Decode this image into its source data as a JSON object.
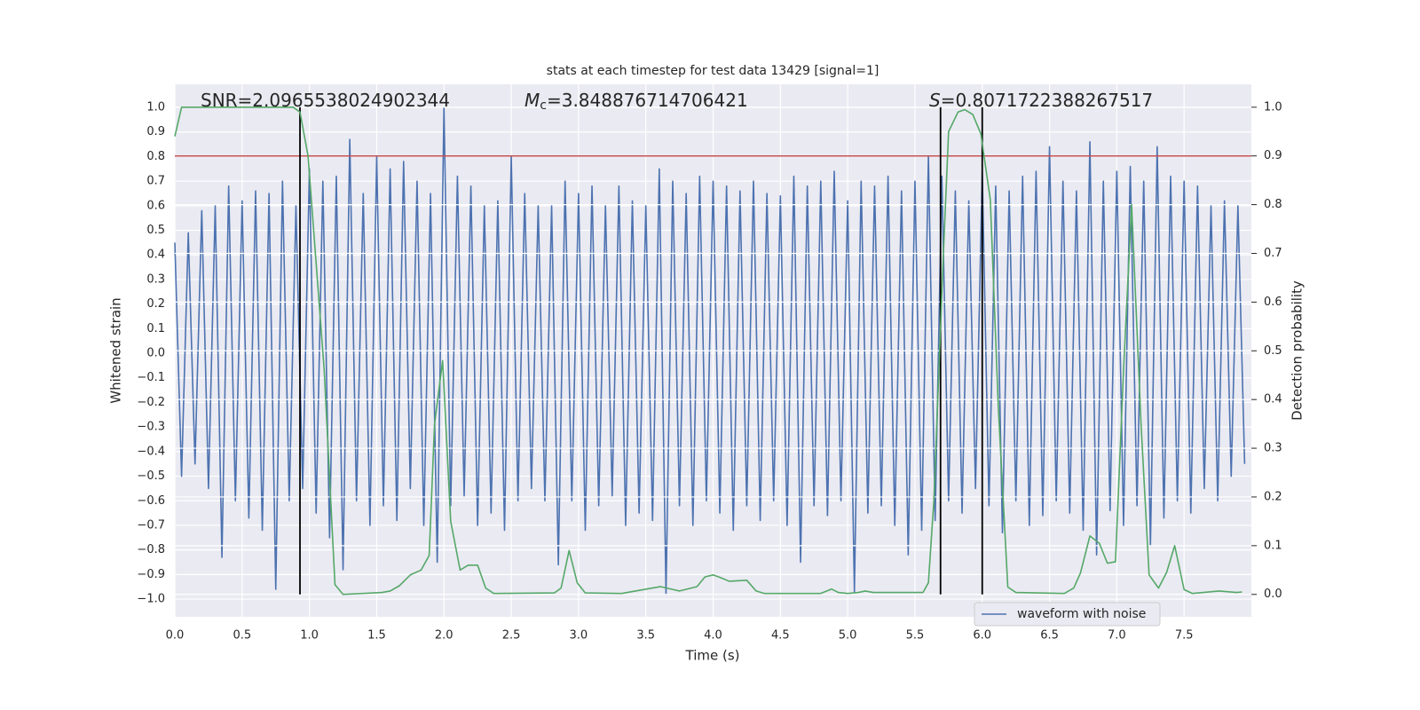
{
  "chart_data": {
    "type": "line",
    "title": "stats at each timestep for test data 13429 [signal=1]",
    "xlabel": "Time (s)",
    "ylabel": "Whitened strain",
    "y2label": "Detection probability",
    "xlim": [
      0,
      8
    ],
    "ylim": [
      -1.072,
      1.094
    ],
    "y2lim": [
      -0.046,
      1.047
    ],
    "xticks": [
      {
        "value": 0,
        "label": "0.0"
      },
      {
        "value": 0.5,
        "label": "0.5"
      },
      {
        "value": 1,
        "label": "1.0"
      },
      {
        "value": 1.5,
        "label": "1.5"
      },
      {
        "value": 2,
        "label": "2.0"
      },
      {
        "value": 2.5,
        "label": "2.5"
      },
      {
        "value": 3,
        "label": "3.0"
      },
      {
        "value": 3.5,
        "label": "3.5"
      },
      {
        "value": 4,
        "label": "4.0"
      },
      {
        "value": 4.5,
        "label": "4.5"
      },
      {
        "value": 5,
        "label": "5.0"
      },
      {
        "value": 5.5,
        "label": "5.5"
      },
      {
        "value": 6,
        "label": "6.0"
      },
      {
        "value": 6.5,
        "label": "6.5"
      },
      {
        "value": 7,
        "label": "7.0"
      },
      {
        "value": 7.5,
        "label": "7.5"
      }
    ],
    "yticks": [
      {
        "value": -1,
        "label": "−1.0"
      },
      {
        "value": -0.9,
        "label": "−0.9"
      },
      {
        "value": -0.8,
        "label": "−0.8"
      },
      {
        "value": -0.7,
        "label": "−0.7"
      },
      {
        "value": -0.6,
        "label": "−0.6"
      },
      {
        "value": -0.5,
        "label": "−0.5"
      },
      {
        "value": -0.4,
        "label": "−0.4"
      },
      {
        "value": -0.3,
        "label": "−0.3"
      },
      {
        "value": -0.2,
        "label": "−0.2"
      },
      {
        "value": -0.1,
        "label": "−0.1"
      },
      {
        "value": 0,
        "label": "0.0"
      },
      {
        "value": 0.1,
        "label": "0.1"
      },
      {
        "value": 0.2,
        "label": "0.2"
      },
      {
        "value": 0.3,
        "label": "0.3"
      },
      {
        "value": 0.4,
        "label": "0.4"
      },
      {
        "value": 0.5,
        "label": "0.5"
      },
      {
        "value": 0.6,
        "label": "0.6"
      },
      {
        "value": 0.7,
        "label": "0.7"
      },
      {
        "value": 0.8,
        "label": "0.8"
      },
      {
        "value": 0.9,
        "label": "0.9"
      },
      {
        "value": 1,
        "label": "1.0"
      }
    ],
    "y2ticks": [
      {
        "value": 0,
        "label": "0.0"
      },
      {
        "value": 0.1,
        "label": "0.1"
      },
      {
        "value": 0.2,
        "label": "0.2"
      },
      {
        "value": 0.3,
        "label": "0.3"
      },
      {
        "value": 0.4,
        "label": "0.4"
      },
      {
        "value": 0.5,
        "label": "0.5"
      },
      {
        "value": 0.6,
        "label": "0.6"
      },
      {
        "value": 0.7,
        "label": "0.7"
      },
      {
        "value": 0.8,
        "label": "0.8"
      },
      {
        "value": 0.9,
        "label": "0.9"
      },
      {
        "value": 1,
        "label": "1.0"
      }
    ],
    "grid": true,
    "legend": "lower right",
    "series": [
      {
        "name": "waveform with noise",
        "color": "#4c72b0",
        "axis": "y",
        "x": [
          0,
          0.05,
          0.1,
          0.15,
          0.2,
          0.25,
          0.3,
          0.35,
          0.4,
          0.45,
          0.5,
          0.55,
          0.6,
          0.65,
          0.7,
          0.75,
          0.8,
          0.85,
          0.9,
          0.95,
          1,
          1.05,
          1.1,
          1.15,
          1.2,
          1.25,
          1.3,
          1.35,
          1.4,
          1.45,
          1.5,
          1.55,
          1.6,
          1.65,
          1.7,
          1.75,
          1.8,
          1.85,
          1.9,
          1.95,
          2,
          2.05,
          2.1,
          2.15,
          2.2,
          2.25,
          2.3,
          2.35,
          2.4,
          2.45,
          2.5,
          2.55,
          2.6,
          2.65,
          2.7,
          2.75,
          2.8,
          2.85,
          2.9,
          2.95,
          3,
          3.05,
          3.1,
          3.15,
          3.2,
          3.25,
          3.3,
          3.35,
          3.4,
          3.45,
          3.5,
          3.55,
          3.6,
          3.65,
          3.7,
          3.75,
          3.8,
          3.85,
          3.9,
          3.95,
          4,
          4.05,
          4.1,
          4.15,
          4.2,
          4.25,
          4.3,
          4.35,
          4.4,
          4.45,
          4.5,
          4.55,
          4.6,
          4.65,
          4.7,
          4.75,
          4.8,
          4.85,
          4.9,
          4.95,
          5,
          5.05,
          5.1,
          5.15,
          5.2,
          5.25,
          5.3,
          5.35,
          5.4,
          5.45,
          5.5,
          5.55,
          5.6,
          5.65,
          5.7,
          5.75,
          5.8,
          5.85,
          5.9,
          5.95,
          6,
          6.05,
          6.1,
          6.15,
          6.2,
          6.25,
          6.3,
          6.35,
          6.4,
          6.45,
          6.5,
          6.55,
          6.6,
          6.65,
          6.7,
          6.75,
          6.8,
          6.85,
          6.9,
          6.95,
          7,
          7.05,
          7.1,
          7.15,
          7.2,
          7.25,
          7.3,
          7.35,
          7.4,
          7.45,
          7.5,
          7.55,
          7.6,
          7.65,
          7.7,
          7.75,
          7.8,
          7.85,
          7.9,
          7.95
        ],
        "values": [
          0.45,
          -0.5,
          0.49,
          -0.45,
          0.58,
          -0.55,
          0.6,
          -0.83,
          0.68,
          -0.6,
          0.62,
          -0.67,
          0.66,
          -0.72,
          0.65,
          -0.96,
          0.7,
          -0.6,
          0.6,
          -0.55,
          0.75,
          -0.65,
          0.7,
          -0.75,
          0.72,
          -0.88,
          0.87,
          -0.6,
          0.65,
          -0.7,
          0.8,
          -0.62,
          0.75,
          -0.68,
          0.78,
          -0.55,
          0.7,
          -0.7,
          0.65,
          -0.85,
          1.0,
          -0.62,
          0.72,
          -0.58,
          0.68,
          -0.7,
          0.6,
          -0.65,
          0.62,
          -0.72,
          0.8,
          -0.6,
          0.65,
          -0.55,
          0.6,
          -0.6,
          0.6,
          -0.86,
          0.7,
          -0.6,
          0.65,
          -0.72,
          0.68,
          -0.62,
          0.6,
          -0.58,
          0.68,
          -0.7,
          0.62,
          -0.65,
          0.6,
          -0.68,
          0.75,
          -0.98,
          0.7,
          -0.62,
          0.65,
          -0.7,
          0.72,
          -0.6,
          0.7,
          -0.65,
          0.68,
          -0.72,
          0.66,
          -0.62,
          0.7,
          -0.68,
          0.65,
          -0.6,
          0.64,
          -0.7,
          0.72,
          -0.85,
          0.68,
          -0.62,
          0.7,
          -0.66,
          0.74,
          -0.6,
          0.62,
          -0.97,
          0.7,
          -0.65,
          0.68,
          -0.62,
          0.72,
          -0.7,
          0.66,
          -0.82,
          0.7,
          -0.72,
          0.8,
          -0.68,
          0.72,
          -0.6,
          0.66,
          -0.65,
          0.62,
          -0.55,
          0.74,
          -0.62,
          0.68,
          -0.73,
          0.66,
          -0.6,
          0.72,
          -0.7,
          0.74,
          -0.66,
          0.84,
          -0.6,
          0.7,
          -0.65,
          0.66,
          -0.72,
          0.86,
          -0.82,
          0.7,
          -0.64,
          0.74,
          -0.7,
          0.76,
          -0.62,
          0.7,
          -0.78,
          0.84,
          -0.67,
          0.72,
          -0.6,
          0.7,
          -0.65,
          0.68,
          -0.55,
          0.6,
          -0.6,
          0.62,
          -0.5,
          0.6,
          -0.45
        ]
      },
      {
        "color": "#55a868",
        "axis": "y2",
        "x": [
          0,
          0.05,
          0.88,
          0.93,
          0.99,
          1.11,
          1.19,
          1.25,
          1.54,
          1.6,
          1.67,
          1.75,
          1.83,
          1.89,
          1.93,
          1.99,
          2.05,
          2.12,
          2.18,
          2.25,
          2.31,
          2.37,
          2.82,
          2.87,
          2.93,
          2.99,
          3.05,
          3.32,
          3.61,
          3.75,
          3.88,
          3.94,
          4,
          4.06,
          4.12,
          4.25,
          4.32,
          4.38,
          4.8,
          4.88,
          4.93,
          5,
          5.08,
          5.13,
          5.19,
          5.56,
          5.6,
          5.64,
          5.71,
          5.75,
          5.82,
          5.87,
          5.93,
          5.99,
          6.06,
          6.12,
          6.19,
          6.25,
          6.61,
          6.68,
          6.73,
          6.8,
          6.87,
          6.93,
          6.99,
          7.05,
          7.11,
          7.18,
          7.24,
          7.31,
          7.37,
          7.43,
          7.5,
          7.56,
          7.76,
          7.89,
          7.93
        ],
        "values": [
          0.94,
          1.0,
          1.0,
          0.99,
          0.9,
          0.46,
          0.02,
          0.0,
          0.004,
          0.007,
          0.018,
          0.04,
          0.05,
          0.08,
          0.35,
          0.48,
          0.15,
          0.05,
          0.06,
          0.06,
          0.013,
          0.002,
          0.003,
          0.013,
          0.09,
          0.024,
          0.003,
          0.002,
          0.016,
          0.007,
          0.016,
          0.036,
          0.04,
          0.034,
          0.027,
          0.029,
          0.007,
          0.002,
          0.002,
          0.011,
          0.004,
          0.002,
          0.004,
          0.007,
          0.004,
          0.004,
          0.024,
          0.19,
          0.69,
          0.95,
          0.99,
          0.995,
          0.985,
          0.945,
          0.81,
          0.38,
          0.015,
          0.004,
          0.002,
          0.013,
          0.044,
          0.12,
          0.105,
          0.064,
          0.067,
          0.46,
          0.8,
          0.35,
          0.04,
          0.013,
          0.045,
          0.1,
          0.01,
          0.002,
          0.007,
          0.004,
          0.005
        ]
      }
    ],
    "hlines": [
      {
        "axis": "y2",
        "value": 0.9,
        "color": "#c44e52"
      }
    ],
    "vlines": [
      {
        "value": 0.93,
        "span": [
          0,
          1
        ],
        "color": "#000000"
      },
      {
        "value": 5.69,
        "span": [
          0,
          1
        ],
        "color": "#000000"
      },
      {
        "value": 6.0,
        "span": [
          0,
          1
        ],
        "color": "#000000"
      }
    ],
    "annotations": [
      {
        "text": "SNR=2.0965538024902344"
      },
      {
        "symbol": "M",
        "subscript": "c",
        "text": "=3.848876714706421"
      },
      {
        "symbol": "S",
        "text": "=0.8071722388267517"
      }
    ]
  }
}
